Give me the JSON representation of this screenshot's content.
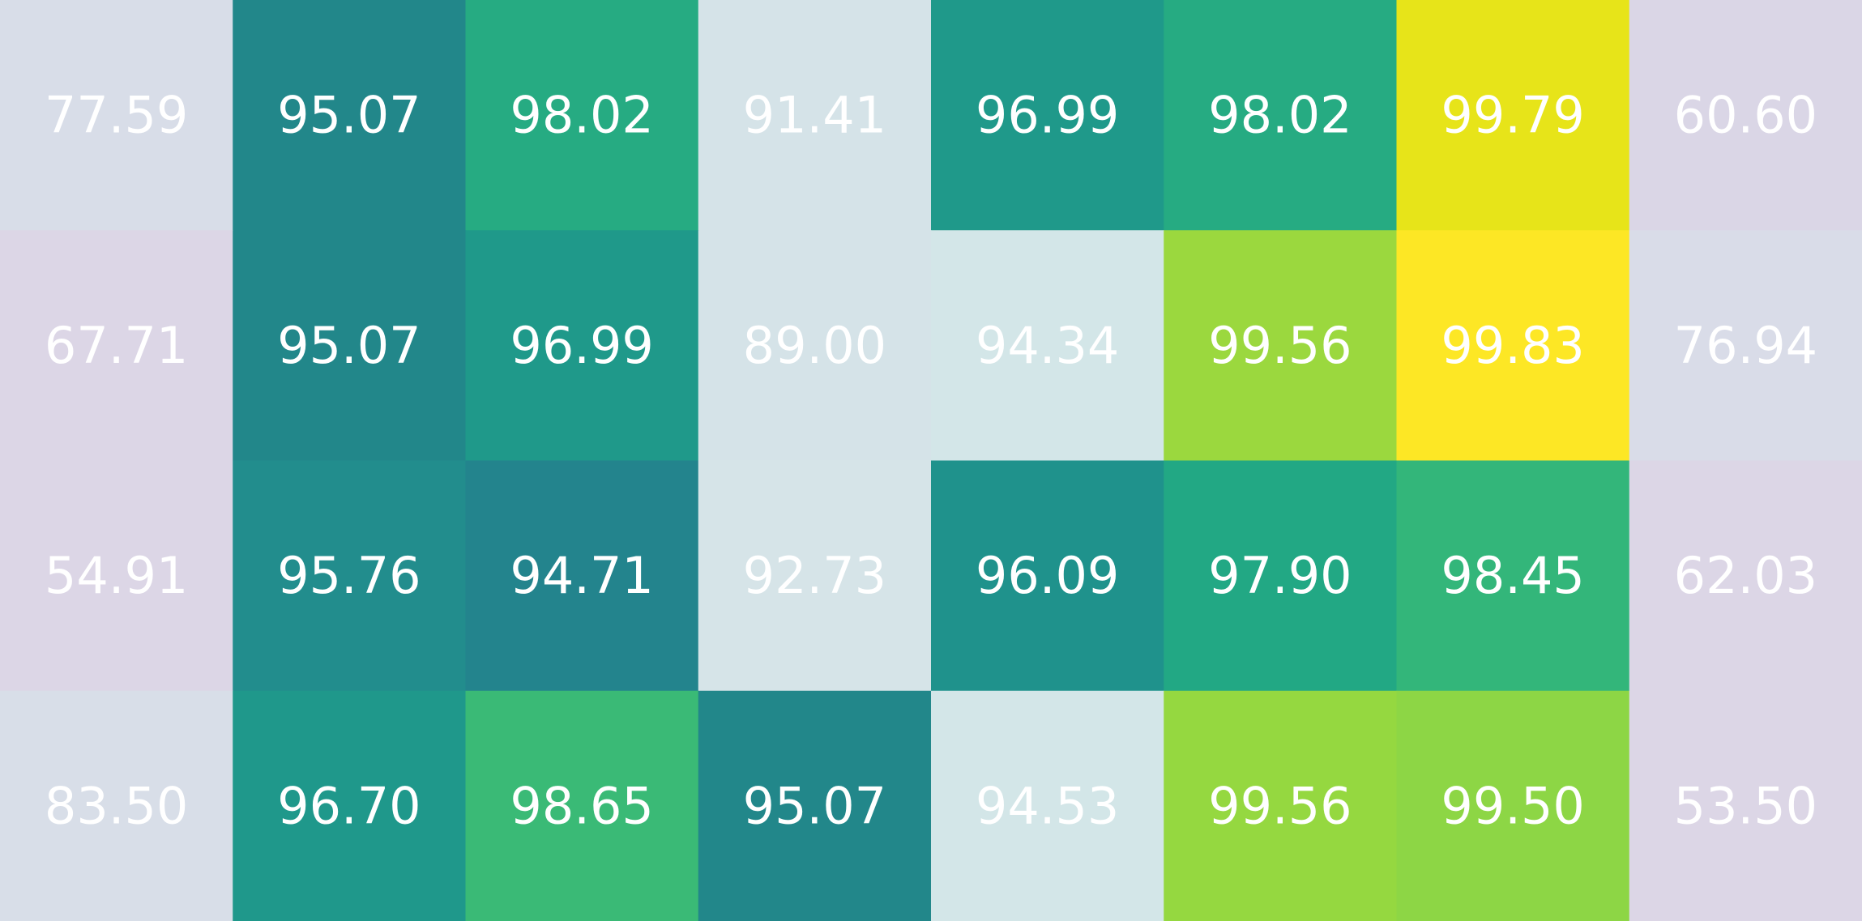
{
  "chart_data": {
    "type": "heatmap",
    "title": "",
    "xlabel": "",
    "ylabel": "",
    "values": [
      [
        77.59,
        95.07,
        98.02,
        91.41,
        96.99,
        98.02,
        99.79,
        60.6
      ],
      [
        67.71,
        95.07,
        96.99,
        89.0,
        94.34,
        99.56,
        99.83,
        76.94
      ],
      [
        54.91,
        95.76,
        94.71,
        92.73,
        96.09,
        97.9,
        98.45,
        62.03
      ],
      [
        83.5,
        96.7,
        98.65,
        95.07,
        94.53,
        99.56,
        99.5,
        53.5
      ]
    ],
    "labels": [
      [
        "77.59",
        "95.07",
        "98.02",
        "91.41",
        "96.99",
        "98.02",
        "99.79",
        "60.60"
      ],
      [
        "67.71",
        "95.07",
        "96.99",
        "89.00",
        "94.34",
        "99.56",
        "99.83",
        "76.94"
      ],
      [
        "54.91",
        "95.76",
        "94.71",
        "92.73",
        "96.09",
        "97.90",
        "98.45",
        "62.03"
      ],
      [
        "83.50",
        "96.70",
        "98.65",
        "95.07",
        "94.53",
        "99.56",
        "99.50",
        "53.50"
      ]
    ],
    "colors": [
      [
        "#d8dde8",
        "#22878a",
        "#26ab82",
        "#d5e3e8",
        "#1f998a",
        "#26ab82",
        "#e7e419",
        "#dad6e6"
      ],
      [
        "#dcd6e6",
        "#22878a",
        "#1f998a",
        "#d5e3e8",
        "#d3e6e8",
        "#9bd83e",
        "#fde725",
        "#d9dce8"
      ],
      [
        "#dcd6e6",
        "#228d8d",
        "#23848d",
        "#d6e4e8",
        "#1f928c",
        "#22a884",
        "#33b67a",
        "#dcd6e6"
      ],
      [
        "#d8dee8",
        "#1f988b",
        "#3aba76",
        "#22878a",
        "#d3e6e8",
        "#95d840",
        "#8dd645",
        "#dcd6e6"
      ]
    ],
    "grid": false,
    "legend": "none"
  }
}
